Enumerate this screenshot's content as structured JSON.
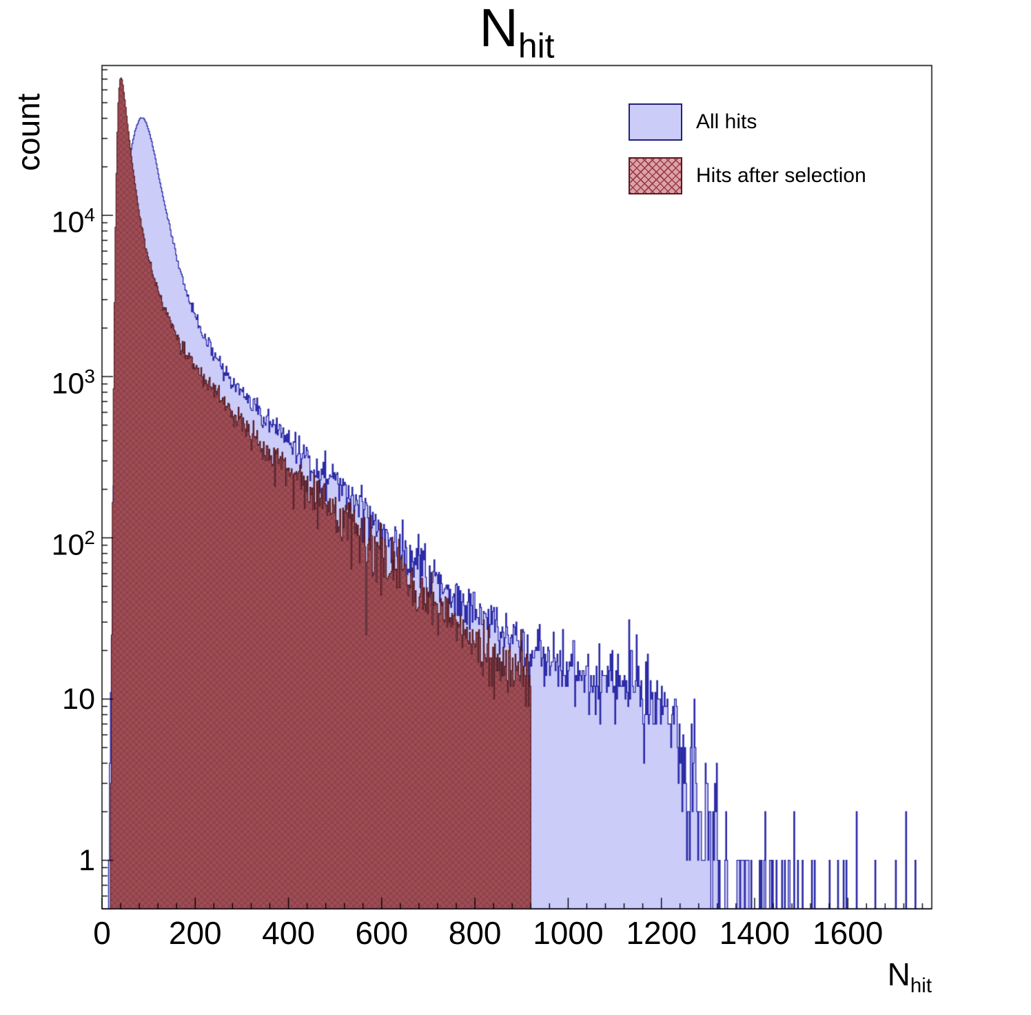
{
  "title": {
    "main": "N",
    "sub": "hit"
  },
  "y_axis_title": "count",
  "x_axis_title": {
    "main": "N",
    "sub": "hit"
  },
  "legend": {
    "entries": [
      {
        "label": "All hits"
      },
      {
        "label": "Hits after selection"
      }
    ]
  },
  "chart_data": {
    "type": "histogram",
    "title": "N_hit",
    "xlabel": "N_hit",
    "ylabel": "count",
    "log_y": true,
    "grid": false,
    "legend_position": "top-right",
    "x_range": [
      0,
      1780
    ],
    "y_range": [
      0.5,
      85000
    ],
    "bin_width": 2,
    "x_ticks": {
      "major": [
        0,
        200,
        400,
        600,
        800,
        1000,
        1200,
        1400,
        1600
      ],
      "minor_step": 40
    },
    "y_ticks": [
      {
        "v": 1,
        "t": "1"
      },
      {
        "v": 10,
        "t": "10"
      },
      {
        "v": 100,
        "t": "10",
        "e": "2"
      },
      {
        "v": 1000,
        "t": "10",
        "e": "3"
      },
      {
        "v": 10000,
        "t": "10",
        "e": "4"
      }
    ],
    "series": [
      {
        "name": "All hits",
        "seed": 42,
        "x_end": 1780,
        "fill_color": "#CCCCF9",
        "line_color": "#2525A5",
        "legend_fill": "#CCCCF9",
        "legend_border": "#20207A",
        "envelope": {
          "x": [
            14,
            16,
            18,
            20,
            22,
            25,
            28,
            31,
            35,
            40,
            46,
            52,
            58,
            64,
            70,
            76,
            82,
            86,
            90,
            96,
            104,
            112,
            122,
            134,
            146,
            160,
            175,
            190,
            200,
            215,
            230,
            250,
            270,
            300,
            330,
            360,
            400,
            450,
            500,
            550,
            600,
            650,
            700,
            750,
            800,
            850,
            900,
            950,
            1000,
            1050,
            1100,
            1150,
            1200,
            1220,
            1240,
            1260,
            1280,
            1300,
            1330,
            1370,
            1420,
            1480,
            1550,
            1650,
            1780
          ],
          "y": [
            0.3,
            1.5,
            6,
            20,
            60,
            200,
            550,
            1300,
            2800,
            5500,
            10000,
            15500,
            21000,
            27000,
            32500,
            37000,
            40200,
            40600,
            39800,
            36800,
            31000,
            24500,
            17500,
            12000,
            8300,
            5600,
            3800,
            2800,
            2400,
            1900,
            1550,
            1230,
            1010,
            780,
            630,
            520,
            400,
            300,
            225,
            165,
            120,
            85,
            62,
            45,
            34,
            27,
            22,
            18.5,
            16,
            14.5,
            13.5,
            12.5,
            10.5,
            8,
            5.5,
            3.6,
            2.4,
            1.7,
            1.0,
            0.55,
            0.3,
            0.18,
            0.13,
            0.1,
            0.06
          ]
        }
      },
      {
        "name": "Hits after selection",
        "seed": 1337,
        "x_end": 920,
        "fill_color": "#9E4C55",
        "line_color": "#4F151B",
        "hatch_color": "rgba(60,12,18,0.30)",
        "legend_fill": "#DAA3A9",
        "legend_border": "#5C191F",
        "legend_hatch": "#9B3A44",
        "envelope": {
          "x": [
            17,
            19,
            21,
            23,
            25,
            27,
            29,
            31,
            33,
            35,
            37,
            39,
            41,
            43,
            45,
            48,
            51,
            55,
            60,
            66,
            72,
            80,
            90,
            100,
            112,
            126,
            142,
            160,
            180,
            200,
            225,
            250,
            280,
            310,
            345,
            380,
            420,
            460,
            500,
            545,
            590,
            640,
            690,
            740,
            790,
            840,
            880,
            910,
            920
          ],
          "y": [
            0.4,
            3,
            25,
            160,
            800,
            3000,
            8500,
            18000,
            33000,
            50000,
            62000,
            69500,
            71200,
            69000,
            64000,
            55000,
            46500,
            37000,
            27500,
            20000,
            15000,
            10400,
            7300,
            5500,
            4100,
            3100,
            2350,
            1800,
            1420,
            1180,
            930,
            760,
            600,
            490,
            385,
            305,
            235,
            185,
            145,
            110,
            84,
            62,
            47,
            36,
            24,
            19,
            16,
            14,
            13.5
          ]
        }
      }
    ]
  }
}
